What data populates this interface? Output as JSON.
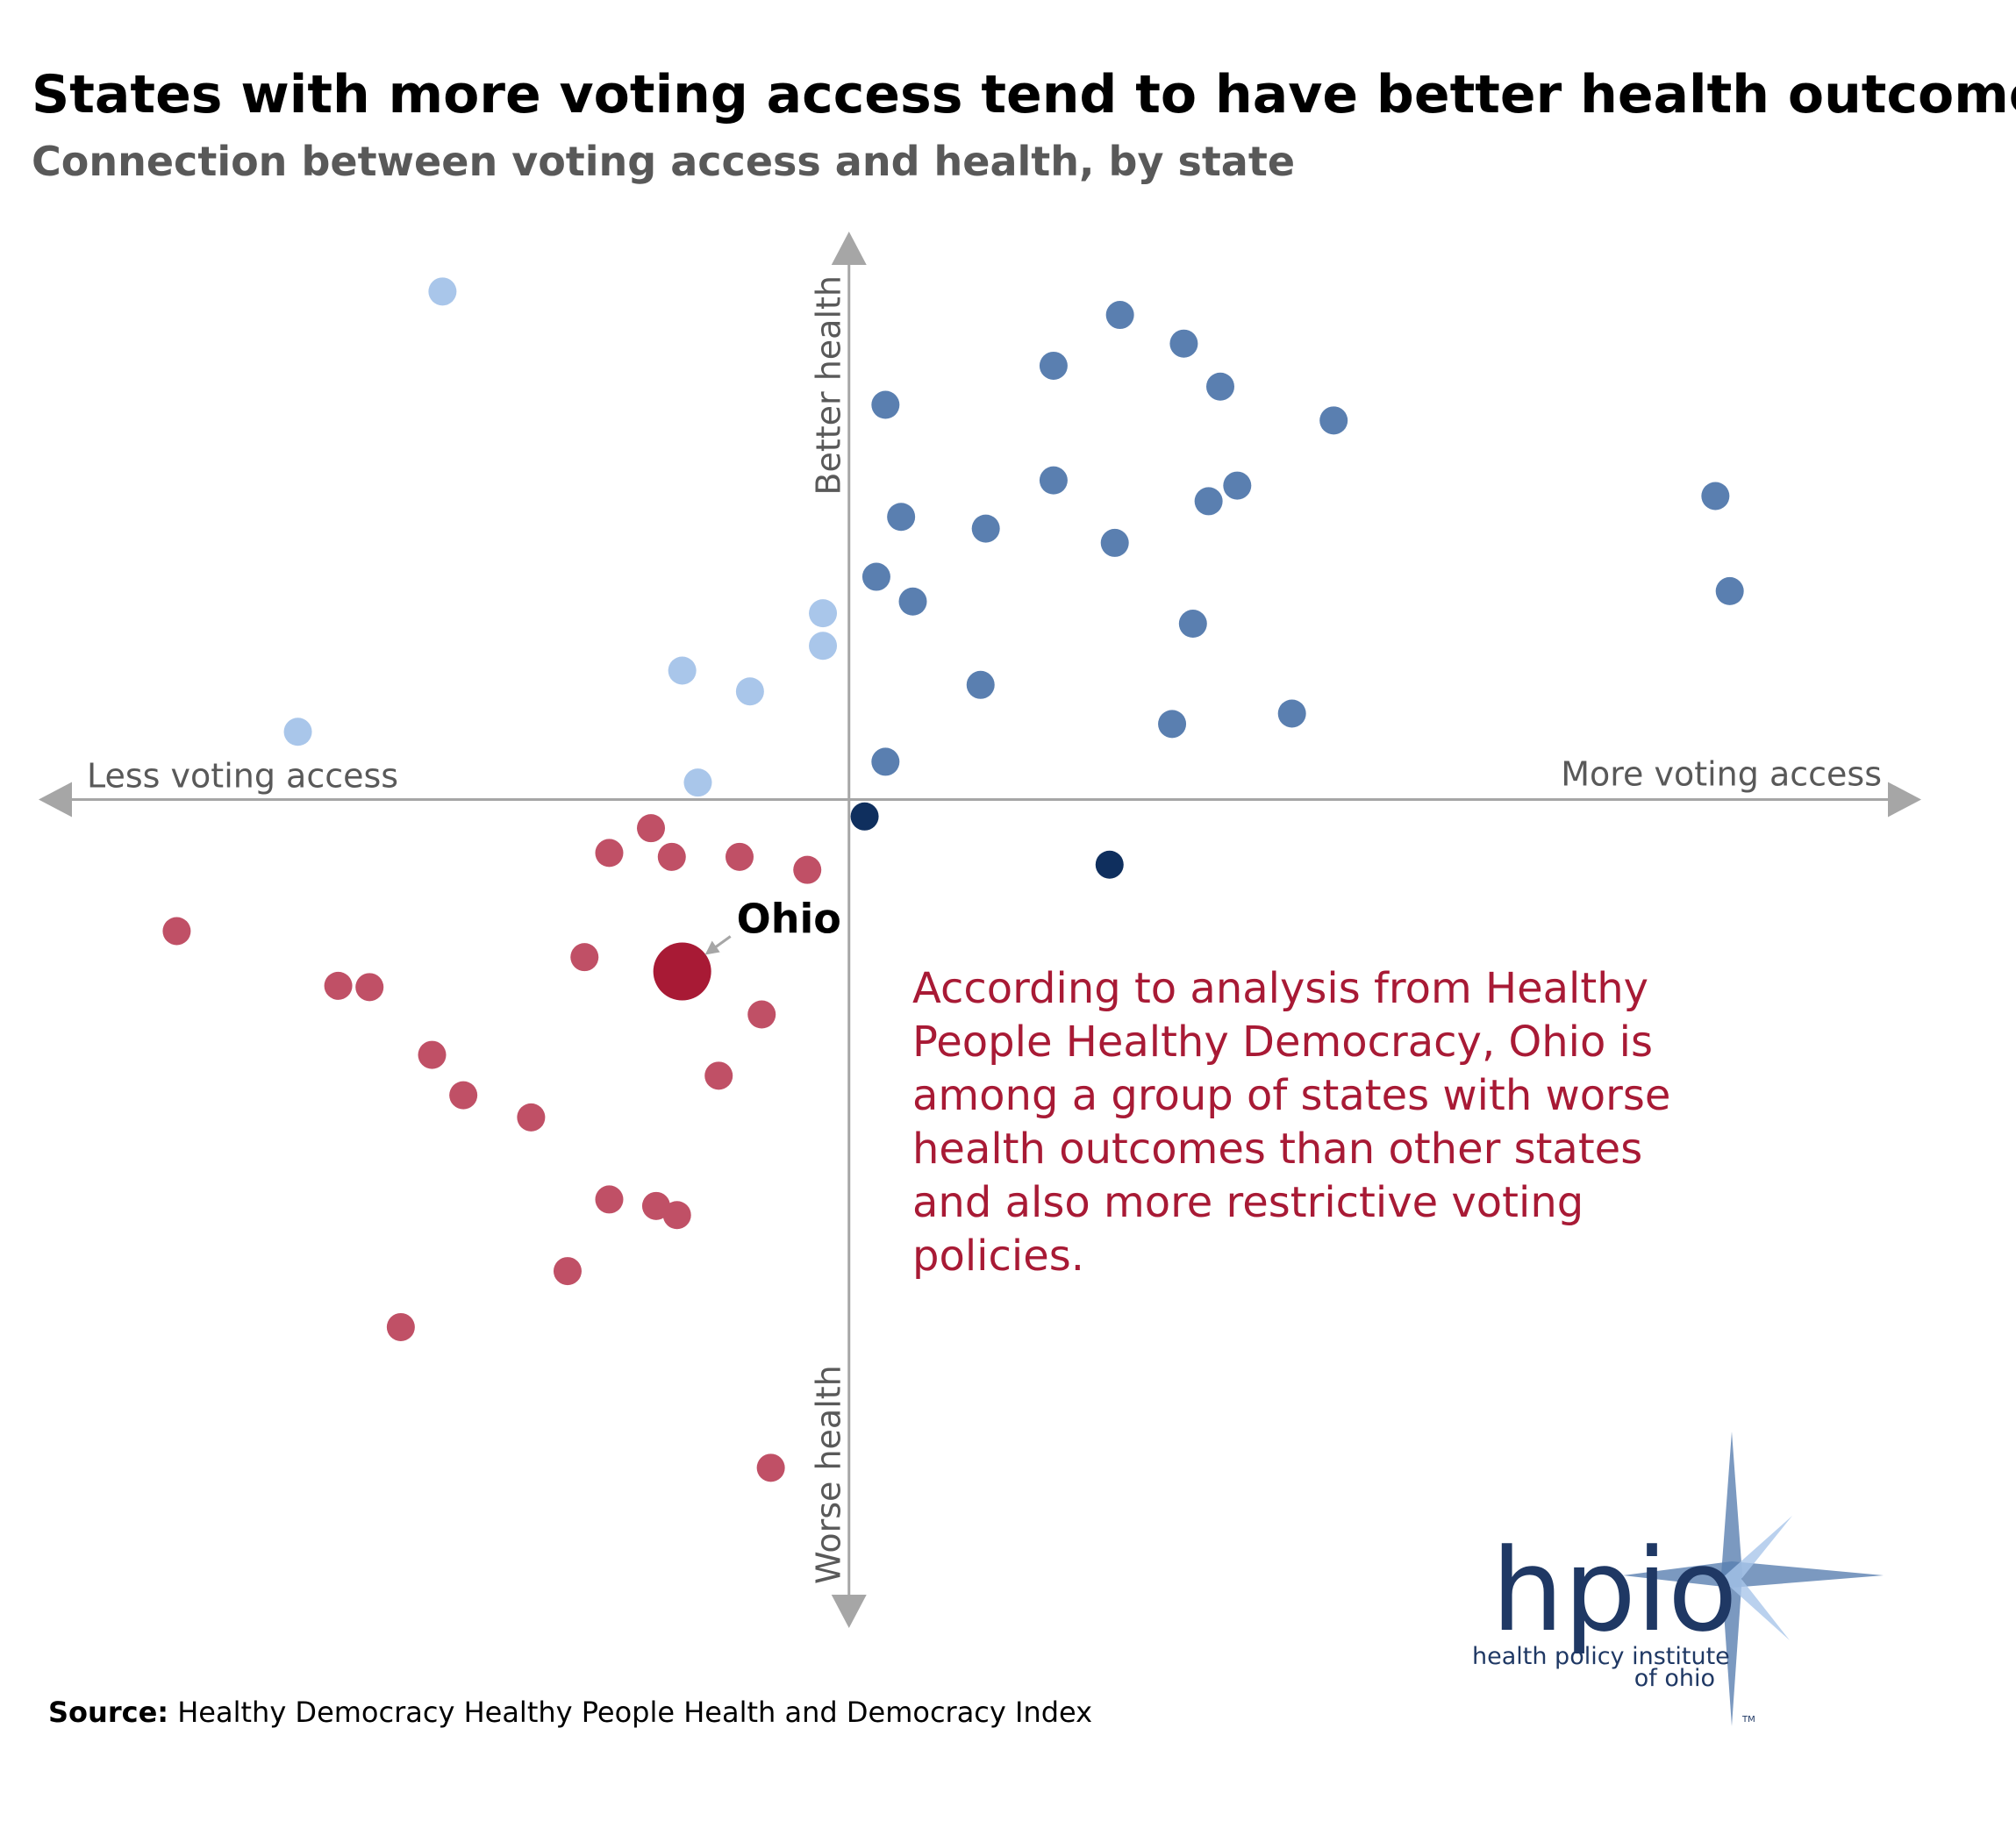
{
  "chart_data": {
    "type": "scatter",
    "title": "States with more voting access tend to have better health outcomes",
    "subtitle": "Connection between voting access and health, by state",
    "x_label_left": "Less voting access",
    "x_label_right": "More voting access",
    "y_label_top": "Better health",
    "y_label_bottom": "Worse health",
    "xlim": [
      -62.2,
      82.3
    ],
    "ylim": [
      -63.6,
      43.6
    ],
    "series": [
      {
        "color": "#a9c6ea",
        "x": [
          -31.2,
          -42.3,
          -2.0,
          -2.0,
          -12.8,
          -7.6,
          -11.6
        ],
        "values": [
          39.0,
          5.2,
          14.3,
          11.8,
          9.9,
          8.3,
          1.3
        ]
      },
      {
        "color": "#5a7fb0",
        "x": [
          20.8,
          25.7,
          15.7,
          28.5,
          2.8,
          37.2,
          15.7,
          29.8,
          27.6,
          66.5,
          4.0,
          10.5,
          20.4,
          2.1,
          4.9,
          67.6,
          26.4,
          10.1,
          24.8,
          34.0,
          2.8
        ],
        "values": [
          37.2,
          35.0,
          33.3,
          31.7,
          30.3,
          29.1,
          24.5,
          24.1,
          22.9,
          23.3,
          21.7,
          20.8,
          19.7,
          17.1,
          15.2,
          16.0,
          13.5,
          8.8,
          5.8,
          6.6,
          2.9
        ]
      },
      {
        "color": "#0f2f5e",
        "x": [
          1.2,
          20.0
        ],
        "values": [
          -1.3,
          -5.0
        ]
      },
      {
        "color": "#c05066",
        "x": [
          -15.2,
          -18.4,
          -13.6,
          -8.4,
          -3.2,
          -51.6,
          -20.3,
          -39.2,
          -36.8,
          -6.7,
          -32.0,
          -10.0,
          -29.6,
          -24.4,
          -18.4,
          -14.8,
          -13.2,
          -21.6,
          -34.4,
          -6.0
        ],
        "values": [
          -2.2,
          -4.1,
          -4.4,
          -4.4,
          -5.4,
          -10.1,
          -12.1,
          -14.3,
          -14.4,
          -16.5,
          -19.6,
          -21.2,
          -22.7,
          -24.4,
          -30.7,
          -31.2,
          -31.9,
          -36.2,
          -40.5,
          -51.3
        ]
      },
      {
        "name": "Ohio",
        "color": "#a81a35",
        "x": [
          -12.8
        ],
        "values": [
          -13.2
        ]
      }
    ],
    "annotation": [
      "According to analysis from Healthy",
      "People Healthy Democracy, Ohio is",
      "among a group of states with worse",
      "health outcomes than other states",
      "and also more restrictive voting",
      "policies."
    ],
    "source_label": "Source:",
    "source": "Healthy Democracy Healthy People Health and Democracy Index"
  },
  "logo": {
    "mark": "hpio",
    "line1": "health policy institute",
    "line2": "of ohio",
    "tm": "TM"
  }
}
